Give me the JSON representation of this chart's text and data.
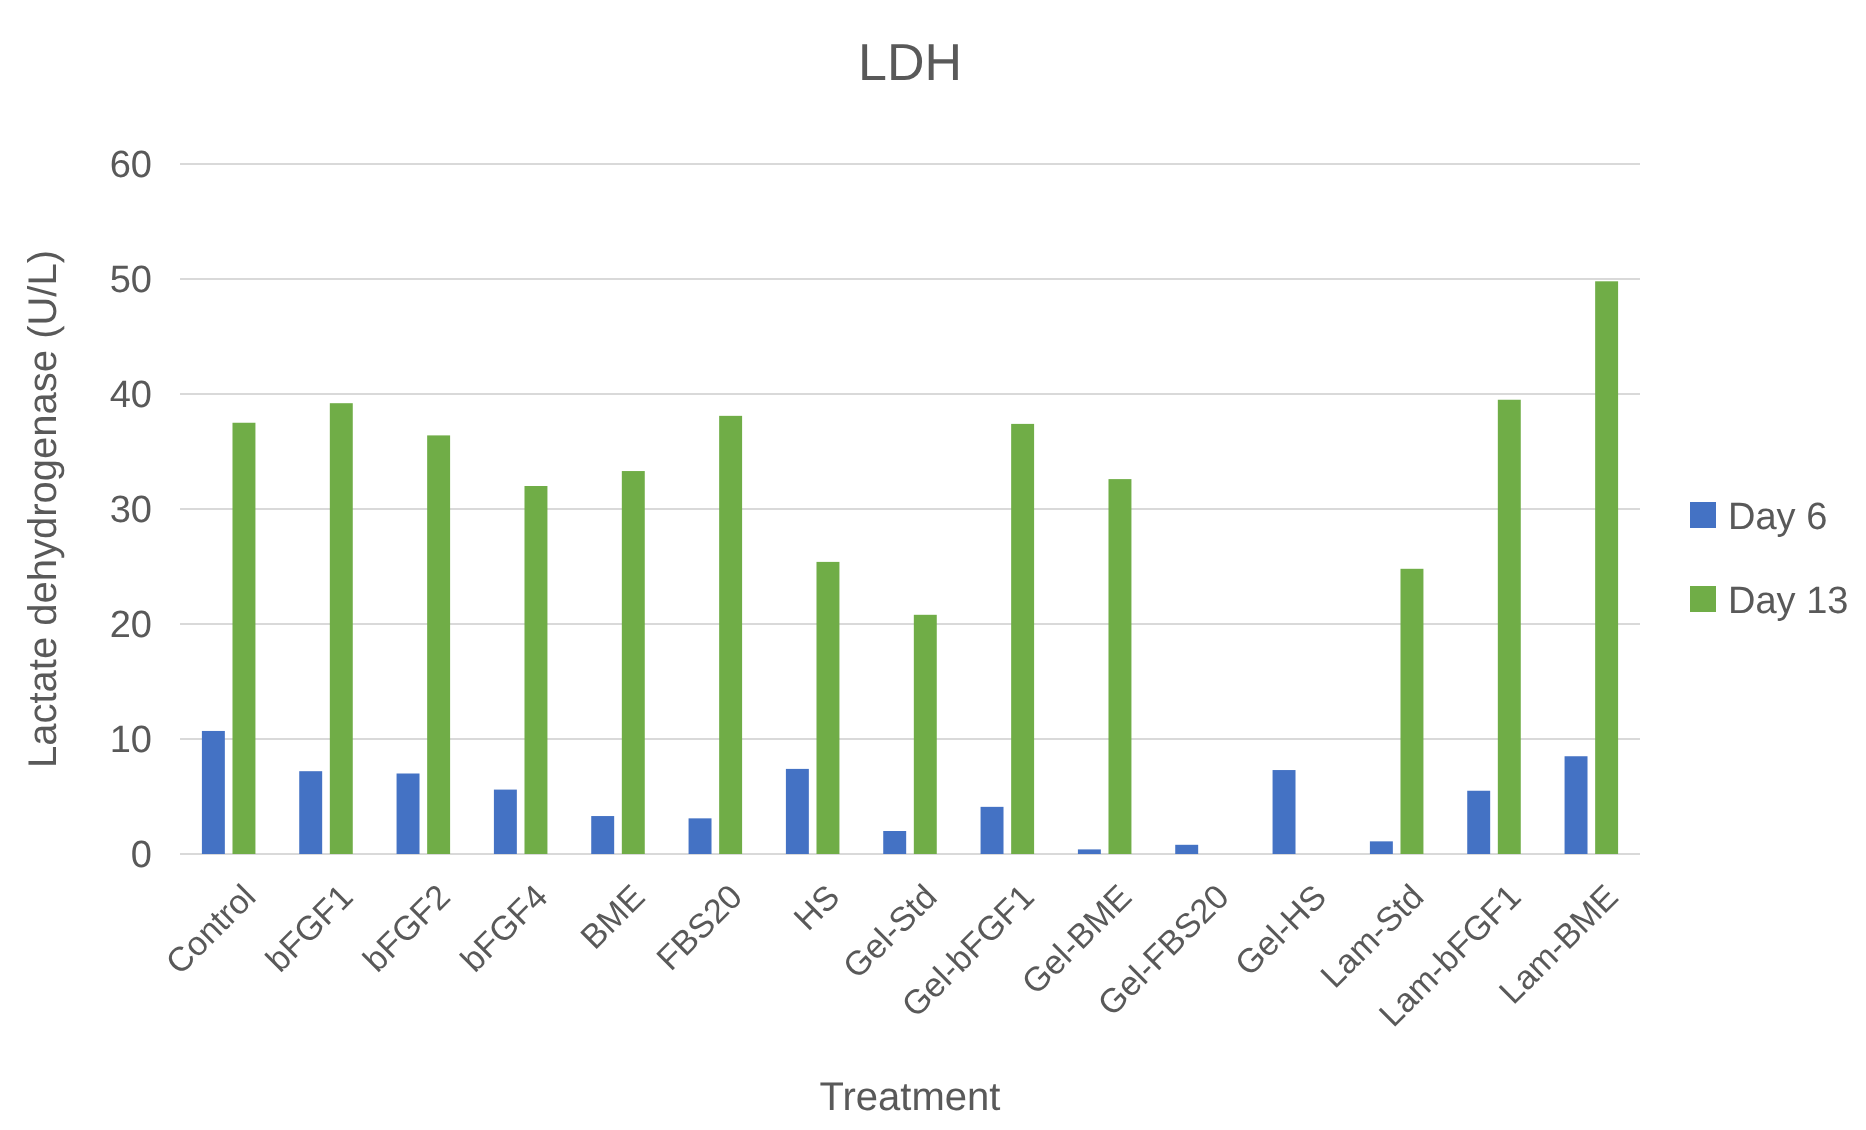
{
  "chart_data": {
    "type": "bar",
    "title": "LDH",
    "xlabel": "Treatment",
    "ylabel": "Lactate dehydrogenase (U/L)",
    "categories": [
      "Control",
      "bFGF1",
      "bFGF2",
      "bFGF4",
      "BME",
      "FBS20",
      "HS",
      "Gel-Std",
      "Gel-bFGF1",
      "Gel-BME",
      "Gel-FBS20",
      "Gel-HS",
      "Lam-Std",
      "Lam-bFGF1",
      "Lam-BME"
    ],
    "series": [
      {
        "name": "Day 6",
        "color": "#4472c4",
        "values": [
          10.7,
          7.2,
          7.0,
          5.6,
          3.3,
          3.1,
          7.4,
          2.0,
          4.1,
          0.4,
          0.8,
          7.3,
          1.1,
          5.5,
          8.5
        ]
      },
      {
        "name": "Day 13",
        "color": "#70ad47",
        "values": [
          37.5,
          39.2,
          36.4,
          32.0,
          33.3,
          38.1,
          25.4,
          20.8,
          37.4,
          32.6,
          0,
          0,
          24.8,
          39.5,
          49.8
        ]
      }
    ],
    "ylim": [
      0,
      60
    ],
    "yticks": [
      0,
      10,
      20,
      30,
      40,
      50,
      60
    ],
    "grid": "y",
    "legend": "right"
  }
}
